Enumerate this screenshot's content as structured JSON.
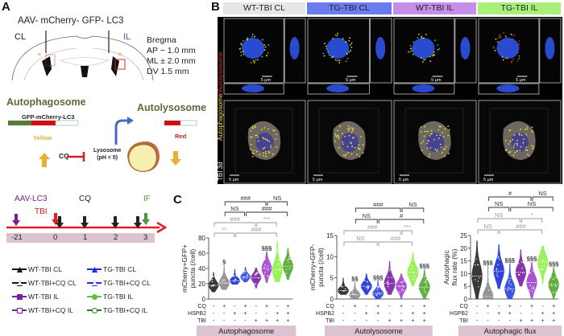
{
  "panels": {
    "a": "A",
    "b": "B",
    "c": "C"
  },
  "panel_a": {
    "construct": "AAV- mCherry- GFP- LC3",
    "cl": "CL",
    "il": "IL",
    "bregma": [
      "Bregma",
      "AP − 1.0  mm",
      "ML ± 2.0  mm",
      "DV    1.5 mm"
    ],
    "autophagosome": "Autophagosome",
    "autolysosome": "Autolysosome",
    "reporter": "GFP-mCherry-LC3",
    "yellow": "Yellow",
    "red": "Red",
    "cq": "CQ",
    "lysosome": [
      "Lysosome",
      "(pH < 5)"
    ],
    "timeline": {
      "aav": "AAV-LC3",
      "tbi": "TBI",
      "cq": "CQ",
      "if": "IF",
      "days": [
        "-21",
        "0",
        "1",
        "2",
        "3"
      ]
    },
    "legend": [
      {
        "label": "WT-TBI CL",
        "color": "#111111",
        "marker": "triangle-filled"
      },
      {
        "label": "TG-TBI CL",
        "color": "#1a2fd6",
        "marker": "triangle-down-filled"
      },
      {
        "label": "WT-TBI+CQ CL",
        "color": "#111111",
        "marker": "triangle-open"
      },
      {
        "label": "TG-TBI+CQ CL",
        "color": "#1a2fd6",
        "marker": "triangle-down-open"
      },
      {
        "label": "WT-TBI IL",
        "color": "#7a1fa2",
        "marker": "square-filled"
      },
      {
        "label": "TG-TBI IL",
        "color": "#5fc23a",
        "marker": "circle-filled"
      },
      {
        "label": "WT-TBI+CQ IL",
        "color": "#7a1fa2",
        "marker": "square-open"
      },
      {
        "label": "TG-TBI+CQ IL",
        "color": "#2e7d1a",
        "marker": "circle-open"
      }
    ]
  },
  "panel_b": {
    "columns": [
      {
        "label": "WT-TBI CL",
        "color": "#e6e6e6"
      },
      {
        "label": "TG-TBI CL",
        "color": "#6b7cf0"
      },
      {
        "label": "WT-TBI IL",
        "color": "#c58ee8"
      },
      {
        "label": "TG-TBI IL",
        "color": "#a8f07a"
      }
    ],
    "side_label_yellow": "Autophagosome",
    "side_label_red": "/Autolysosome",
    "side_label_3d": "TBI 3d",
    "scale_bar": "5 μm"
  },
  "chart_data": [
    {
      "type": "violin",
      "ylabel": [
        "mCherry+GFP+",
        "puncta (/cell)"
      ],
      "ylim": [
        0,
        80
      ],
      "yticks": [
        0,
        20,
        40,
        60,
        80
      ],
      "category": "Autophagosome",
      "median": [
        18,
        21,
        24,
        29,
        28,
        40,
        38,
        43
      ],
      "min": [
        9,
        12,
        19,
        22,
        14,
        21,
        22,
        25
      ],
      "max": [
        35,
        44,
        39,
        42,
        41,
        62,
        76,
        67
      ],
      "symbols": [
        "",
        "§",
        "",
        "",
        "",
        "§§§",
        "",
        ""
      ],
      "brackets": [
        {
          "level": 1,
          "from": 1,
          "to": 3,
          "label": "**",
          "style": "gray"
        },
        {
          "level": 1,
          "from": 3,
          "to": 7,
          "label": "###",
          "style": "gray"
        },
        {
          "level": 2,
          "from": 1,
          "to": 5,
          "label": "###",
          "style": "gray"
        },
        {
          "level": 2,
          "from": 5,
          "to": 7,
          "label": "***",
          "style": "gray"
        },
        {
          "level": 3,
          "from": 2,
          "to": 4,
          "label": "NS",
          "style": "dark"
        },
        {
          "level": 3,
          "from": 4,
          "to": 8,
          "label": "###",
          "style": "dark"
        },
        {
          "level": 4,
          "from": 2,
          "to": 6,
          "label": "###",
          "style": "dark"
        },
        {
          "level": 4,
          "from": 6,
          "to": 8,
          "label": "NS",
          "style": "dark"
        }
      ]
    },
    {
      "type": "violin",
      "ylabel": [
        "mCherry+GFP-",
        "puncta (/cell)"
      ],
      "ylim": [
        0,
        15
      ],
      "yticks": [
        0,
        5,
        10,
        15
      ],
      "category": "Autolysosome",
      "median": [
        2,
        1,
        3,
        1.3,
        3.7,
        3,
        6.3,
        2.8
      ],
      "min": [
        1,
        0,
        1,
        0,
        1,
        0,
        3,
        0
      ],
      "max": [
        5,
        4,
        6,
        4.3,
        9,
        6,
        11,
        7
      ],
      "symbols": [
        "",
        "§§",
        "",
        "§§§",
        "",
        "",
        "",
        "§§§"
      ],
      "brackets": [
        {
          "level": 1,
          "from": 1,
          "to": 4,
          "label": "NS",
          "style": "gray"
        },
        {
          "level": 1,
          "from": 4,
          "to": 7,
          "label": "###",
          "style": "gray"
        },
        {
          "level": 2,
          "from": 1,
          "to": 6,
          "label": "###",
          "style": "gray"
        },
        {
          "level": 2,
          "from": 6,
          "to": 7,
          "label": "***",
          "style": "gray"
        },
        {
          "level": 3,
          "from": 2,
          "to": 4,
          "label": "NS",
          "style": "dark"
        },
        {
          "level": 3,
          "from": 4,
          "to": 8,
          "label": "#",
          "style": "dark"
        },
        {
          "level": 4,
          "from": 2,
          "to": 6,
          "label": "###",
          "style": "dark"
        },
        {
          "level": 4,
          "from": 6,
          "to": 8,
          "label": "NS",
          "style": "dark"
        }
      ]
    },
    {
      "type": "violin",
      "ylabel": [
        "Autophagic",
        "flux rate (%)"
      ],
      "ylim": [
        0,
        25
      ],
      "yticks": [
        0,
        5,
        10,
        15,
        20,
        25
      ],
      "category": "Autophagic flux",
      "median": [
        9,
        1,
        11,
        4,
        10.5,
        6.5,
        14.5,
        5.7
      ],
      "min": [
        0,
        0,
        4,
        0,
        5,
        0,
        6,
        0
      ],
      "max": [
        23,
        13,
        21.5,
        14,
        19.5,
        14.5,
        21,
        12.5
      ],
      "symbols": [
        "",
        "§§§",
        "",
        "§§§",
        "",
        "§§§",
        "",
        "§§§"
      ],
      "brackets": [
        {
          "level": 1,
          "from": 1,
          "to": 3,
          "label": "NS",
          "style": "gray"
        },
        {
          "level": 1,
          "from": 3,
          "to": 7,
          "label": "###",
          "style": "gray"
        },
        {
          "level": 2,
          "from": 1,
          "to": 5,
          "label": "NS",
          "style": "gray"
        },
        {
          "level": 2,
          "from": 5,
          "to": 7,
          "label": "*",
          "style": "gray"
        },
        {
          "level": 3,
          "from": 2,
          "to": 4,
          "label": "NS",
          "style": "dark"
        },
        {
          "level": 3,
          "from": 4,
          "to": 8,
          "label": "NS",
          "style": "dark"
        },
        {
          "level": 4,
          "from": 2,
          "to": 6,
          "label": "#",
          "style": "dark"
        },
        {
          "level": 4,
          "from": 6,
          "to": 8,
          "label": "NS",
          "style": "dark"
        }
      ]
    }
  ],
  "chart_common": {
    "groups": [
      "WT-TBI CL",
      "WT-TBI+CQ CL",
      "TG-TBI CL",
      "TG-TBI+CQ CL",
      "WT-TBI IL",
      "WT-TBI+CQ IL",
      "TG-TBI IL",
      "TG-TBI+CQ IL"
    ],
    "group_colors": [
      "#222222",
      "#8a8a8a",
      "#1a2fd6",
      "#2a44e0",
      "#7a1fa2",
      "#a040d0",
      "#8ef04a",
      "#4fa62a"
    ],
    "rows": [
      {
        "label": "CQ",
        "signs": [
          "-",
          "+",
          "-",
          "+",
          "-",
          "+",
          "-",
          "+"
        ]
      },
      {
        "label": "HSPB2",
        "signs": [
          "-",
          "-",
          "+",
          "+",
          "-",
          "-",
          "+",
          "+"
        ]
      },
      {
        "label": "TBI",
        "signs": [
          "-",
          "-",
          "-",
          "-",
          "+",
          "+",
          "+",
          "+"
        ]
      }
    ],
    "category_color": "#dcc3d2"
  }
}
